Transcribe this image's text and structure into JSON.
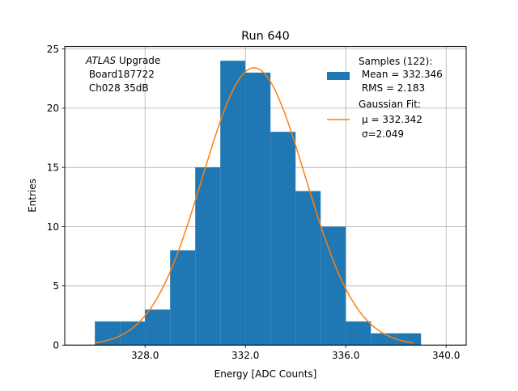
{
  "chart_data": {
    "type": "bar",
    "title": "Run 640",
    "xlabel": "Energy [ADC Counts]",
    "ylabel": "Entries",
    "xlim": [
      324.8,
      340.8
    ],
    "ylim": [
      0,
      25.2
    ],
    "grid": true,
    "x_ticks": [
      328.0,
      332.0,
      336.0,
      340.0
    ],
    "x_tick_labels": [
      "328.0",
      "332.0",
      "336.0",
      "340.0"
    ],
    "y_ticks": [
      0,
      5,
      10,
      15,
      20,
      25
    ],
    "y_tick_labels": [
      "0",
      "5",
      "10",
      "15",
      "20",
      "25"
    ],
    "bin_edges": [
      326,
      327,
      328,
      329,
      330,
      331,
      332,
      333,
      334,
      335,
      336,
      337,
      338,
      339
    ],
    "values": [
      2,
      2,
      3,
      8,
      15,
      24,
      23,
      18,
      13,
      10,
      2,
      1,
      1
    ],
    "bar_color": "#1f77b4",
    "fit": {
      "mu": 332.342,
      "sigma": 2.049,
      "x_range": [
        326,
        338.7
      ],
      "peak": 23.4,
      "color": "#ff7f0e"
    },
    "annotation": {
      "italic_part": "ATLAS",
      "line1_rest": " Upgrade",
      "line2": " Board187722",
      "line3": " Ch028 35dB"
    },
    "legend": {
      "position": "top-right",
      "samples": [
        "Samples (122):",
        " Mean = 332.346",
        " RMS = 2.183"
      ],
      "fit": [
        "Gaussian Fit:",
        "μ = 332.342",
        "σ=2.049"
      ]
    }
  }
}
